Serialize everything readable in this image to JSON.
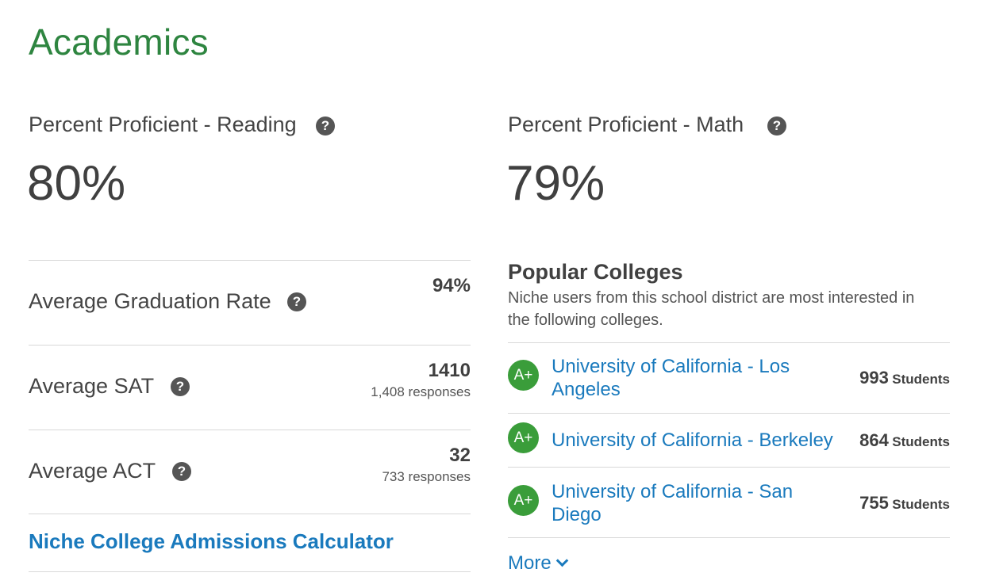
{
  "section": {
    "title": "Academics"
  },
  "reading": {
    "label": "Percent Proficient - Reading",
    "value": "80%"
  },
  "math": {
    "label": "Percent Proficient - Math",
    "value": "79%"
  },
  "graduation": {
    "label": "Average Graduation Rate",
    "value": "94%"
  },
  "sat": {
    "label": "Average SAT",
    "value": "1410",
    "responses": "1,408 responses"
  },
  "act": {
    "label": "Average ACT",
    "value": "32",
    "responses": "733 responses"
  },
  "calculator": {
    "label": "Niche College Admissions Calculator"
  },
  "help": {
    "glyph": "?"
  },
  "popular": {
    "title": "Popular Colleges",
    "description": "Niche users from this school district are most interested in the following colleges.",
    "colleges": [
      {
        "grade": "A+",
        "name": "University of California - Los Angeles",
        "count": "993",
        "unit": "Students"
      },
      {
        "grade": "A+",
        "name": "University of California - Berkeley",
        "count": "864",
        "unit": "Students"
      },
      {
        "grade": "A+",
        "name": "University of California - San Diego",
        "count": "755",
        "unit": "Students"
      }
    ],
    "more_label": "More"
  },
  "colors": {
    "title_green": "#2e8540",
    "link_blue": "#1a7abd",
    "badge_green": "#3a9d3a"
  },
  "icons": {
    "help": "question-circle-icon",
    "more": "chevron-down-icon"
  }
}
